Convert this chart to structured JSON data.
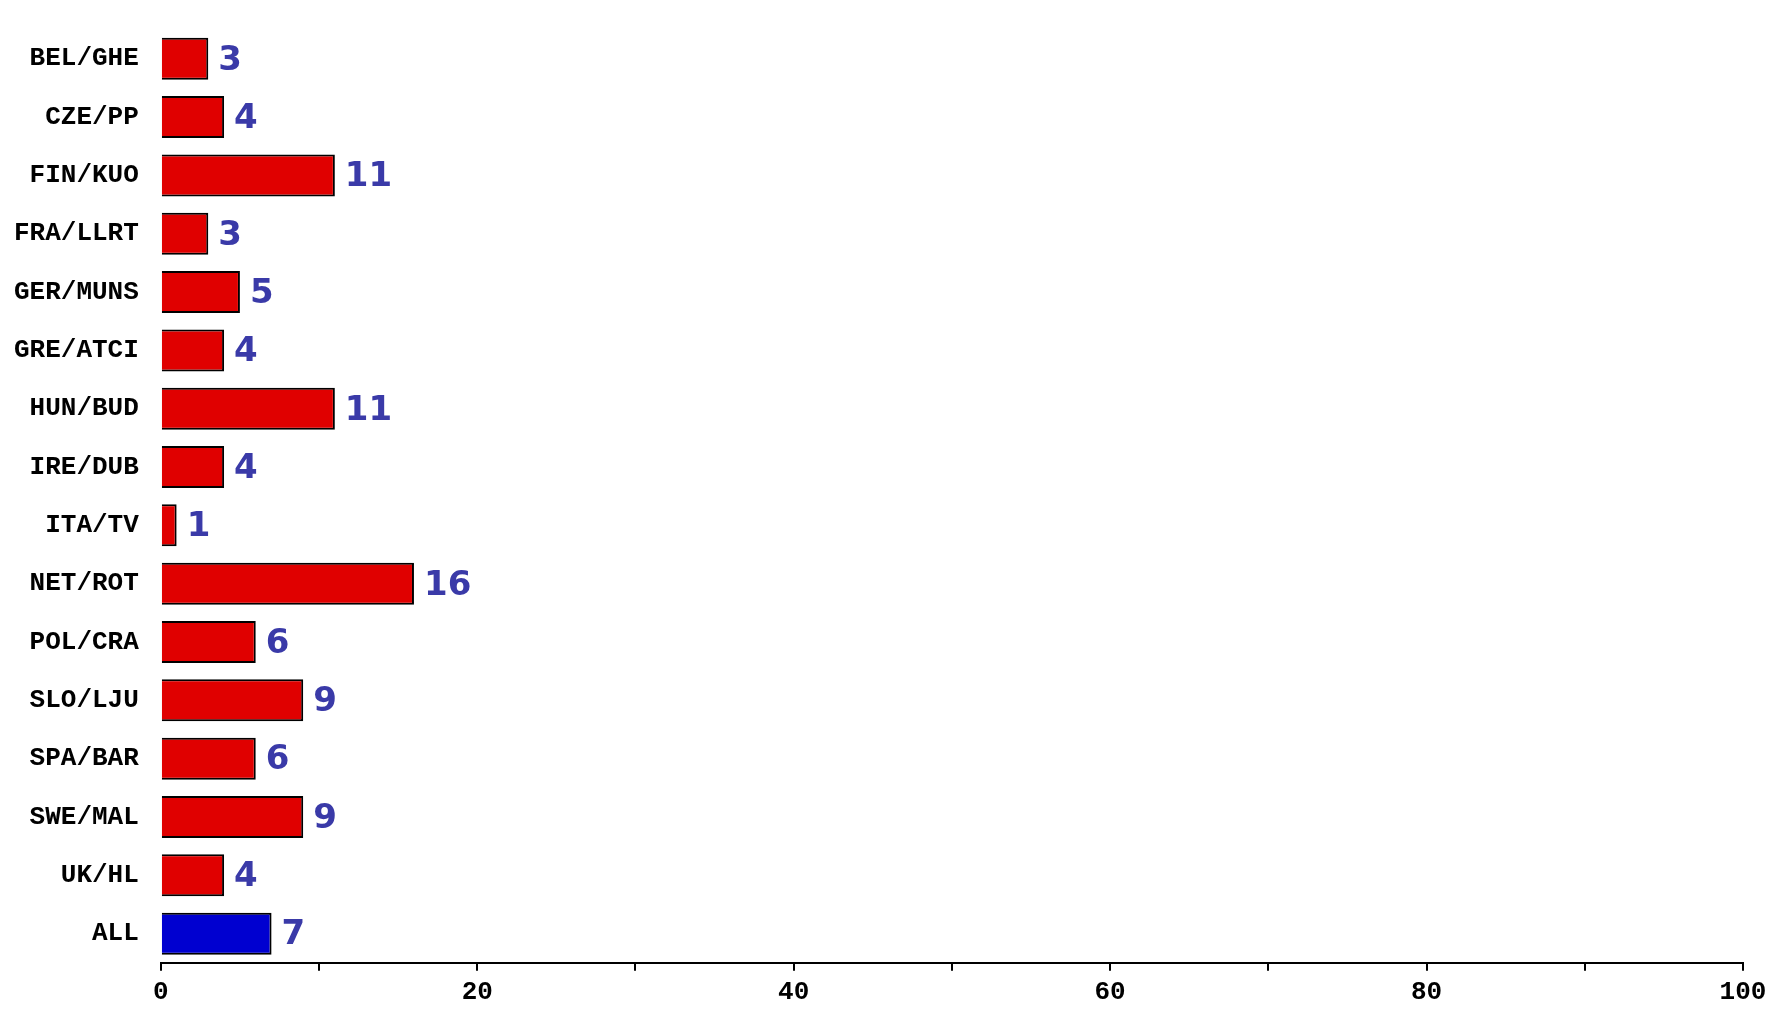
{
  "chart_data": {
    "type": "bar",
    "orientation": "horizontal",
    "categories": [
      "BEL/GHE",
      "CZE/PP",
      "FIN/KUO",
      "FRA/LLRT",
      "GER/MUNS",
      "GRE/ATCI",
      "HUN/BUD",
      "IRE/DUB",
      "ITA/TV",
      "NET/ROT",
      "POL/CRA",
      "SLO/LJU",
      "SPA/BAR",
      "SWE/MAL",
      "UK/HL",
      "ALL"
    ],
    "values": [
      3,
      4,
      11,
      3,
      5,
      4,
      11,
      4,
      1,
      16,
      6,
      9,
      6,
      9,
      4,
      7
    ],
    "colors": [
      "#e00000",
      "#e00000",
      "#e00000",
      "#e00000",
      "#e00000",
      "#e00000",
      "#e00000",
      "#e00000",
      "#e00000",
      "#e00000",
      "#e00000",
      "#e00000",
      "#e00000",
      "#e00000",
      "#e00000",
      "#0000d0"
    ],
    "xlim": [
      0,
      100
    ],
    "xticks": [
      0,
      {
        "value": 10,
        "label": null
      },
      20,
      {
        "value": 30,
        "label": null
      },
      40,
      {
        "value": 50,
        "label": null
      },
      60,
      {
        "value": 70,
        "label": null
      },
      80,
      {
        "value": 90,
        "label": null
      },
      100
    ],
    "data_labels": true,
    "grid": false,
    "legend": false
  }
}
